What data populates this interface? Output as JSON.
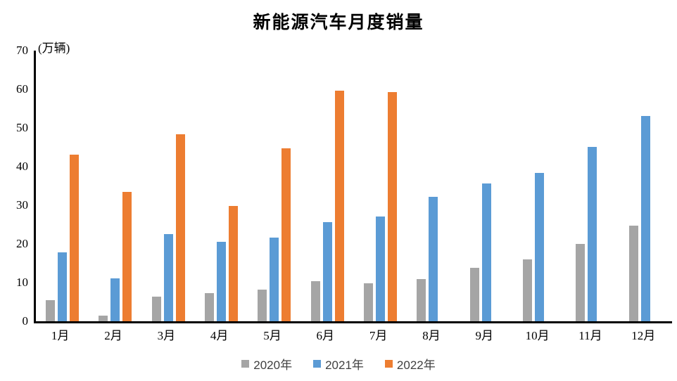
{
  "title": "新能源汽车月度销量",
  "unit_label": "(万辆)",
  "chart_data": {
    "type": "bar",
    "title": "新能源汽车月度销量",
    "ylabel": "(万辆)",
    "xlabel": "",
    "categories": [
      "1月",
      "2月",
      "3月",
      "4月",
      "5月",
      "6月",
      "7月",
      "8月",
      "9月",
      "10月",
      "11月",
      "12月"
    ],
    "series": [
      {
        "name": "2020年",
        "color": "#A5A5A5",
        "values": [
          5.4,
          1.5,
          6.4,
          7.2,
          8.2,
          10.4,
          9.8,
          10.9,
          13.8,
          16.0,
          20.0,
          24.8
        ]
      },
      {
        "name": "2021年",
        "color": "#5B9BD5",
        "values": [
          17.9,
          11.0,
          22.6,
          20.6,
          21.7,
          25.6,
          27.1,
          32.1,
          35.7,
          38.3,
          45.0,
          53.1
        ]
      },
      {
        "name": "2022年",
        "color": "#ED7D31",
        "values": [
          43.1,
          33.4,
          48.4,
          29.9,
          44.7,
          59.6,
          59.3,
          null,
          null,
          null,
          null,
          null
        ]
      }
    ],
    "ylim": [
      0,
      70
    ],
    "yticks": [
      0,
      10,
      20,
      30,
      40,
      50,
      60,
      70
    ],
    "grid": false,
    "legend_position": "bottom",
    "axis_color": "#000000",
    "background_color": "#FFFFFF"
  }
}
